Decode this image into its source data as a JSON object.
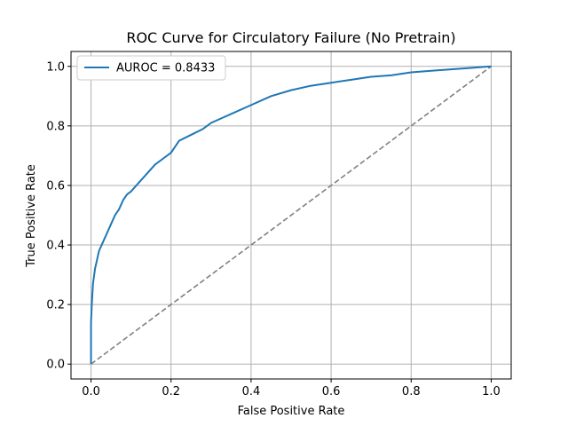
{
  "chart_data": {
    "type": "line",
    "title": "ROC Curve for Circulatory Failure (No Pretrain)",
    "xlabel": "False Positive Rate",
    "ylabel": "True Positive Rate",
    "xlim": [
      -0.05,
      1.05
    ],
    "ylim": [
      -0.05,
      1.05
    ],
    "grid": true,
    "legend_position": "upper-left",
    "x_ticks": [
      "0.0",
      "0.2",
      "0.4",
      "0.6",
      "0.8",
      "1.0"
    ],
    "y_ticks": [
      "0.0",
      "0.2",
      "0.4",
      "0.6",
      "0.8",
      "1.0"
    ],
    "series": [
      {
        "name": "AUROC = 0.8433",
        "color": "#1f77b4",
        "x": [
          0.0,
          0.0,
          0.002,
          0.005,
          0.01,
          0.015,
          0.02,
          0.03,
          0.04,
          0.05,
          0.06,
          0.07,
          0.08,
          0.09,
          0.1,
          0.12,
          0.14,
          0.16,
          0.18,
          0.2,
          0.22,
          0.25,
          0.28,
          0.3,
          0.35,
          0.4,
          0.45,
          0.5,
          0.55,
          0.6,
          0.65,
          0.7,
          0.75,
          0.8,
          0.85,
          0.9,
          0.95,
          1.0
        ],
        "y": [
          0.0,
          0.14,
          0.2,
          0.27,
          0.32,
          0.35,
          0.38,
          0.41,
          0.44,
          0.47,
          0.5,
          0.52,
          0.55,
          0.57,
          0.58,
          0.61,
          0.64,
          0.67,
          0.69,
          0.71,
          0.75,
          0.77,
          0.79,
          0.81,
          0.84,
          0.87,
          0.9,
          0.92,
          0.935,
          0.945,
          0.955,
          0.965,
          0.97,
          0.98,
          0.985,
          0.99,
          0.995,
          1.0
        ]
      },
      {
        "color": "#808080",
        "style": "dashed",
        "x": [
          0.0,
          1.0
        ],
        "y": [
          0.0,
          1.0
        ]
      }
    ]
  }
}
